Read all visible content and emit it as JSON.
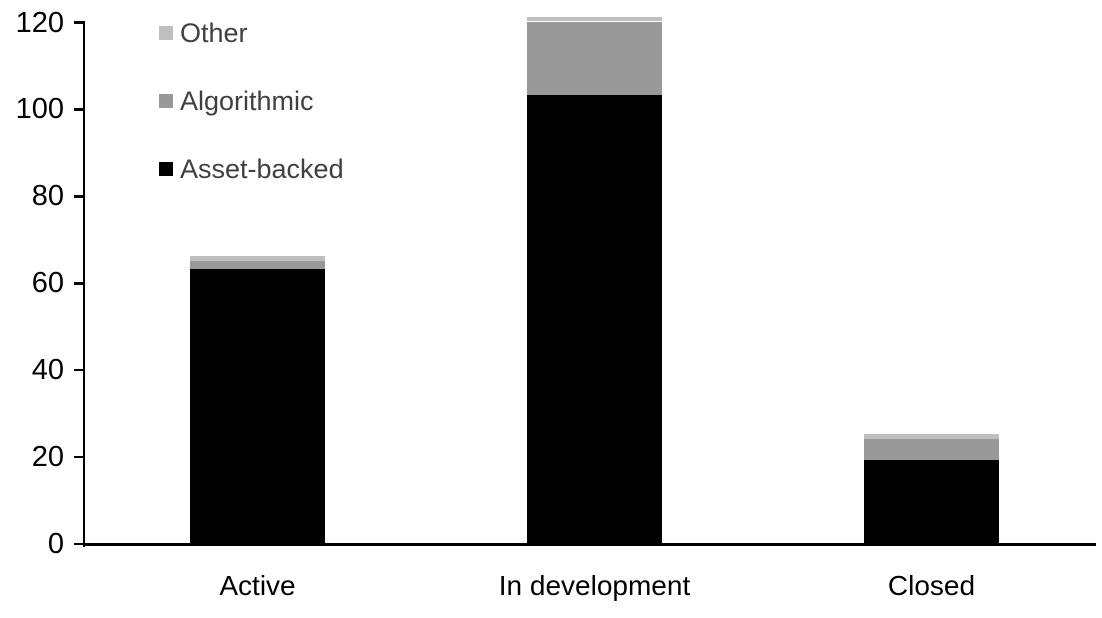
{
  "chart_data": {
    "type": "bar",
    "subtype": "stacked-vertical",
    "title": "",
    "xlabel": "",
    "ylabel": "",
    "categories": [
      "Active",
      "In development",
      "Closed"
    ],
    "series": [
      {
        "name": "Asset-backed",
        "color": "#000000",
        "values": [
          63,
          103,
          19
        ]
      },
      {
        "name": "Algorithmic",
        "color": "#999999",
        "values": [
          2,
          17,
          5
        ]
      },
      {
        "name": "Other",
        "color": "#BFBFBF",
        "values": [
          1,
          1,
          1
        ]
      }
    ],
    "stack_order": "bottom-to-top",
    "totals": [
      66,
      121,
      25
    ],
    "ylim": [
      0,
      120
    ],
    "yticks": [
      0,
      20,
      40,
      60,
      80,
      100,
      120
    ],
    "grid": false,
    "legend": {
      "position": "top-left",
      "order_top_to_bottom": [
        "Other",
        "Algorithmic",
        "Asset-backed"
      ],
      "text_color": "#404040"
    },
    "axis_color": "#000000",
    "background_color": "#FFFFFF"
  }
}
